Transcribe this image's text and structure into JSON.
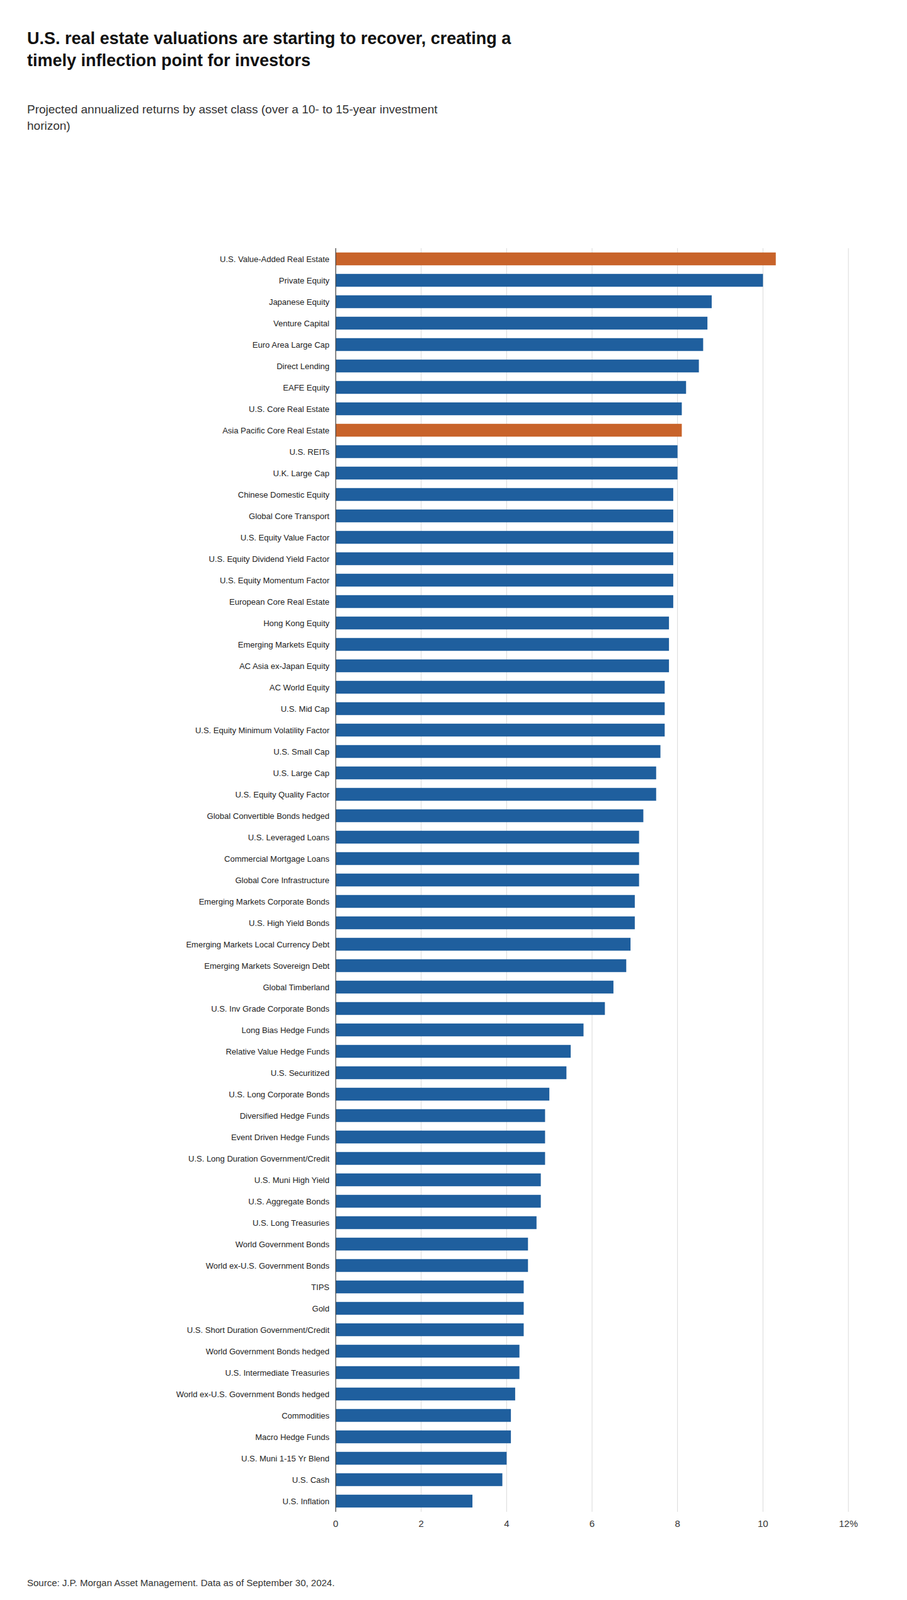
{
  "chart_data": {
    "type": "bar",
    "orientation": "horizontal",
    "title": "U.S. real estate valuations are starting to recover, creating a\ntimely inflection point for investors",
    "subtitle": "Projected annualized returns by asset class (over a 10- to 15-year investment\nhorizon)",
    "source": "Source: J.P. Morgan Asset Management. Data as of September 30, 2024.",
    "categories": [
      "U.S. Value-Added Real Estate",
      "Private Equity",
      "Japanese Equity",
      "Venture Capital",
      "Euro Area Large Cap",
      "Direct Lending",
      "EAFE Equity",
      "U.S. Core Real Estate",
      "Asia Pacific Core Real Estate",
      "U.S. REITs",
      "U.K. Large Cap",
      "Chinese Domestic Equity",
      "Global Core Transport",
      "U.S. Equity Value Factor",
      "U.S. Equity Dividend Yield Factor",
      "U.S. Equity Momentum Factor",
      "European Core Real Estate",
      "Hong Kong Equity",
      "Emerging Markets Equity",
      "AC Asia ex-Japan Equity",
      "AC World Equity",
      "U.S. Mid Cap",
      "U.S. Equity Minimum Volatility Factor",
      "U.S. Small Cap",
      "U.S. Large Cap",
      "U.S. Equity Quality Factor",
      "Global Convertible Bonds hedged",
      "U.S. Leveraged Loans",
      "Commercial Mortgage Loans",
      "Global Core Infrastructure",
      "Emerging Markets Corporate Bonds",
      "U.S. High Yield Bonds",
      "Emerging Markets Local Currency Debt",
      "Emerging Markets Sovereign Debt",
      "Global Timberland",
      "U.S. Inv Grade Corporate Bonds",
      "Long Bias Hedge Funds",
      "Relative Value Hedge Funds",
      "U.S. Securitized",
      "U.S. Long Corporate Bonds",
      "Diversified Hedge Funds",
      "Event Driven Hedge Funds",
      "U.S. Long Duration Government/Credit",
      "U.S. Muni High Yield",
      "U.S. Aggregate Bonds",
      "U.S. Long Treasuries",
      "World Government Bonds",
      "World ex-U.S. Government Bonds",
      "TIPS",
      "Gold",
      "U.S. Short Duration Government/Credit",
      "World Government Bonds hedged",
      "U.S. Intermediate Treasuries",
      "World ex-U.S. Government Bonds hedged",
      "Commodities",
      "Macro Hedge Funds",
      "U.S. Muni 1-15 Yr Blend",
      "U.S. Cash",
      "U.S. Inflation"
    ],
    "values": [
      10.3,
      10.0,
      8.8,
      8.7,
      8.6,
      8.5,
      8.2,
      8.1,
      8.1,
      8.0,
      8.0,
      7.9,
      7.9,
      7.9,
      7.9,
      7.9,
      7.9,
      7.8,
      7.8,
      7.8,
      7.7,
      7.7,
      7.7,
      7.6,
      7.5,
      7.5,
      7.2,
      7.1,
      7.1,
      7.1,
      7.0,
      7.0,
      6.9,
      6.8,
      6.5,
      6.3,
      5.8,
      5.5,
      5.4,
      5.0,
      4.9,
      4.9,
      4.9,
      4.8,
      4.8,
      4.7,
      4.5,
      4.5,
      4.4,
      4.4,
      4.4,
      4.3,
      4.3,
      4.2,
      4.1,
      4.1,
      4.0,
      3.9,
      3.2
    ],
    "colors": [
      "#C8632A",
      "#1F5F9E",
      "#1F5F9E",
      "#1F5F9E",
      "#1F5F9E",
      "#1F5F9E",
      "#1F5F9E",
      "#1F5F9E",
      "#C8632A",
      "#1F5F9E",
      "#1F5F9E",
      "#1F5F9E",
      "#1F5F9E",
      "#1F5F9E",
      "#1F5F9E",
      "#1F5F9E",
      "#1F5F9E",
      "#1F5F9E",
      "#1F5F9E",
      "#1F5F9E",
      "#1F5F9E",
      "#1F5F9E",
      "#1F5F9E",
      "#1F5F9E",
      "#1F5F9E",
      "#1F5F9E",
      "#1F5F9E",
      "#1F5F9E",
      "#1F5F9E",
      "#1F5F9E",
      "#1F5F9E",
      "#1F5F9E",
      "#1F5F9E",
      "#1F5F9E",
      "#1F5F9E",
      "#1F5F9E",
      "#1F5F9E",
      "#1F5F9E",
      "#1F5F9E",
      "#1F5F9E",
      "#1F5F9E",
      "#1F5F9E",
      "#1F5F9E",
      "#1F5F9E",
      "#1F5F9E",
      "#1F5F9E",
      "#1F5F9E",
      "#1F5F9E",
      "#1F5F9E",
      "#1F5F9E",
      "#1F5F9E",
      "#1F5F9E",
      "#1F5F9E",
      "#1F5F9E",
      "#1F5F9E",
      "#1F5F9E",
      "#1F5F9E",
      "#1F5F9E",
      "#1F5F9E"
    ],
    "xlim": [
      0,
      12
    ],
    "xticks": [
      0,
      2,
      4,
      6,
      8,
      10,
      {
        "value": 12,
        "label": "12%"
      }
    ],
    "grid": true
  }
}
